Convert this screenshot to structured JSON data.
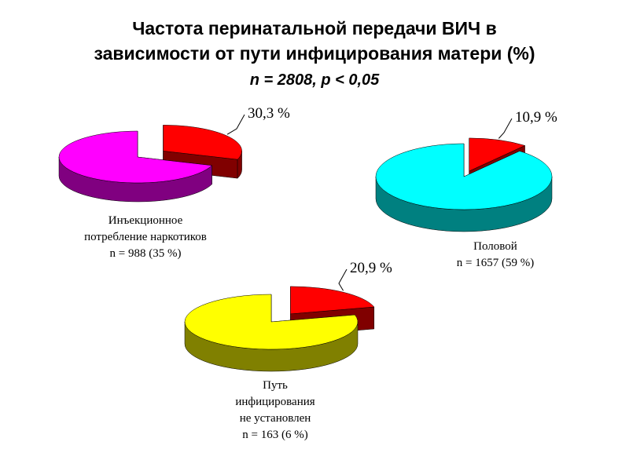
{
  "title": [
    "Частота перинатальной передачи ВИЧ в",
    "зависимости от пути инфицирования матери (%)"
  ],
  "subtitle": "n = 2808, p < 0,05",
  "chart_data": [
    {
      "type": "pie",
      "values": [
        30.3,
        69.7
      ],
      "value_labels": [
        "30,3 %",
        null
      ],
      "colors": [
        "#ff0000",
        "#ff00ff"
      ],
      "side_colors": [
        "#800000",
        "#800080"
      ],
      "caption": [
        "Инъекционное",
        "потребление наркотиков",
        "n = 988 (35 %)"
      ]
    },
    {
      "type": "pie",
      "values": [
        10.9,
        89.1
      ],
      "value_labels": [
        "10,9 %",
        null
      ],
      "colors": [
        "#ff0000",
        "#00ffff"
      ],
      "side_colors": [
        "#800000",
        "#008080"
      ],
      "caption": [
        "Половой",
        "n = 1657 (59 %)"
      ]
    },
    {
      "type": "pie",
      "values": [
        20.9,
        79.1
      ],
      "value_labels": [
        "20,9 %",
        null
      ],
      "colors": [
        "#ff0000",
        "#ffff00"
      ],
      "side_colors": [
        "#800000",
        "#808000"
      ],
      "caption": [
        "Путь",
        "инфицирования",
        "не установлен",
        "n = 163 (6 %)"
      ]
    }
  ]
}
